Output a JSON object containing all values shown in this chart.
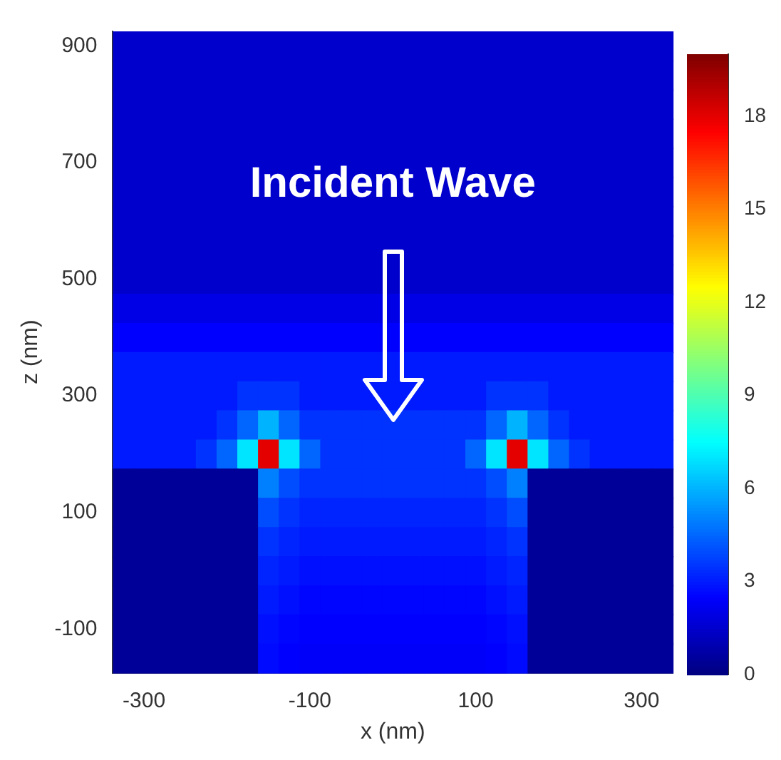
{
  "chart_data": {
    "type": "heatmap",
    "xlabel": "x (nm)",
    "ylabel": "z (nm)",
    "annotations": [
      "Incident Wave"
    ],
    "clim": [
      0,
      20
    ],
    "cticks": [
      0,
      3,
      6,
      9,
      12,
      15,
      18
    ],
    "categories": [
      null,
      "-300",
      null,
      null,
      null,
      null,
      null,
      null,
      null,
      "-100",
      null,
      null,
      null,
      null,
      null,
      null,
      null,
      "100",
      null,
      null,
      null,
      null,
      null,
      null,
      null,
      "300",
      null
    ],
    "y_categories": [
      "900",
      null,
      null,
      null,
      "700",
      null,
      null,
      null,
      "500",
      null,
      null,
      null,
      "300",
      null,
      null,
      null,
      "100",
      null,
      null,
      null,
      "-100",
      null
    ],
    "cells": [
      [
        1.5,
        1.5,
        1.5,
        1.5,
        1.5,
        1.5,
        1.5,
        1.5,
        1.5,
        1.5,
        1.5,
        1.5,
        1.5,
        1.5,
        1.5,
        1.5,
        1.5,
        1.5,
        1.5,
        1.5,
        1.5,
        1.5,
        1.5,
        1.5,
        1.5,
        1.5,
        1.5
      ],
      [
        1.5,
        1.5,
        1.5,
        1.5,
        1.5,
        1.5,
        1.5,
        1.5,
        1.5,
        1.5,
        1.5,
        1.5,
        1.5,
        1.5,
        1.5,
        1.5,
        1.5,
        1.5,
        1.5,
        1.5,
        1.5,
        1.5,
        1.5,
        1.5,
        1.5,
        1.5,
        1.5
      ],
      [
        1.5,
        1.5,
        1.5,
        1.5,
        1.5,
        1.5,
        1.5,
        1.5,
        1.5,
        1.5,
        1.5,
        1.5,
        1.5,
        1.5,
        1.5,
        1.5,
        1.5,
        1.5,
        1.5,
        1.5,
        1.5,
        1.5,
        1.5,
        1.5,
        1.5,
        1.5,
        1.5
      ],
      [
        1.5,
        1.5,
        1.5,
        1.5,
        1.5,
        1.5,
        1.5,
        1.5,
        1.5,
        1.5,
        1.5,
        1.5,
        1.5,
        1.5,
        1.5,
        1.5,
        1.5,
        1.5,
        1.5,
        1.5,
        1.5,
        1.5,
        1.5,
        1.5,
        1.5,
        1.5,
        1.5
      ],
      [
        1.5,
        1.5,
        1.5,
        1.5,
        1.5,
        1.5,
        1.5,
        1.5,
        1.5,
        1.5,
        1.5,
        1.5,
        1.5,
        1.5,
        1.5,
        1.5,
        1.5,
        1.5,
        1.5,
        1.5,
        1.5,
        1.5,
        1.5,
        1.5,
        1.5,
        1.5,
        1.5
      ],
      [
        1.5,
        1.5,
        1.5,
        1.5,
        1.5,
        1.5,
        1.5,
        1.5,
        1.5,
        1.5,
        1.5,
        1.5,
        1.5,
        1.5,
        1.5,
        1.5,
        1.5,
        1.5,
        1.5,
        1.5,
        1.5,
        1.5,
        1.5,
        1.5,
        1.5,
        1.5,
        1.5
      ],
      [
        1.5,
        1.5,
        1.5,
        1.5,
        1.5,
        1.5,
        1.5,
        1.5,
        1.5,
        1.5,
        1.5,
        1.5,
        1.5,
        1.5,
        1.5,
        1.5,
        1.5,
        1.5,
        1.5,
        1.5,
        1.5,
        1.5,
        1.5,
        1.5,
        1.5,
        1.5,
        1.5
      ],
      [
        1.5,
        1.5,
        1.5,
        1.5,
        1.5,
        1.5,
        1.5,
        1.5,
        1.5,
        1.5,
        1.5,
        1.5,
        1.5,
        1.5,
        1.5,
        1.5,
        1.5,
        1.5,
        1.5,
        1.5,
        1.5,
        1.5,
        1.5,
        1.5,
        1.5,
        1.5,
        1.5
      ],
      [
        1.5,
        1.5,
        1.5,
        1.5,
        1.5,
        1.5,
        1.5,
        1.5,
        1.5,
        1.5,
        1.5,
        1.5,
        1.5,
        1.5,
        1.5,
        1.5,
        1.5,
        1.5,
        1.5,
        1.5,
        1.5,
        1.5,
        1.5,
        1.5,
        1.5,
        1.5,
        1.5
      ],
      [
        2,
        2,
        2,
        2,
        2,
        2,
        2,
        2,
        2,
        2,
        2,
        2,
        2,
        2,
        2,
        2,
        2,
        2,
        2,
        2,
        2,
        2,
        2,
        2,
        2,
        2,
        2
      ],
      [
        2.5,
        2.5,
        2.5,
        2.5,
        2.5,
        2.5,
        2.5,
        2.5,
        2.5,
        2.5,
        2.5,
        2.5,
        2.5,
        2.5,
        2.5,
        2.5,
        2.5,
        2.5,
        2.5,
        2.5,
        2.5,
        2.5,
        2.5,
        2.5,
        2.5,
        2.5,
        2.5
      ],
      [
        3,
        3,
        3,
        3,
        3,
        3,
        3,
        3,
        3,
        3,
        3,
        3,
        3,
        3,
        3,
        3,
        3,
        3,
        3,
        3,
        3,
        3,
        3,
        3,
        3,
        3,
        3
      ],
      [
        3,
        3,
        3,
        3,
        3,
        3,
        3.5,
        3.5,
        3.5,
        3,
        3,
        3,
        3,
        3,
        3,
        3,
        3,
        3,
        3.5,
        3.5,
        3.5,
        3,
        3,
        3,
        3,
        3,
        3
      ],
      [
        3,
        3,
        3,
        3,
        3,
        3.5,
        4.5,
        6,
        4.5,
        3.5,
        3.5,
        3.5,
        3.5,
        3.5,
        3.5,
        3.5,
        3.5,
        3.5,
        4.5,
        6,
        4.5,
        3.5,
        3,
        3,
        3,
        3,
        3
      ],
      [
        3,
        3,
        3,
        3,
        3.5,
        4.5,
        7,
        18,
        7,
        4.5,
        3.5,
        3.5,
        3.5,
        3.5,
        3.5,
        3.5,
        3.5,
        4.5,
        7,
        18,
        7,
        4.5,
        3.5,
        3,
        3,
        3,
        3
      ],
      [
        0.5,
        0.5,
        0.5,
        0.5,
        0.5,
        0.5,
        0.5,
        5,
        4,
        3.5,
        3.5,
        3.5,
        3.5,
        3.5,
        3.5,
        3.5,
        3.5,
        3.5,
        4,
        5,
        0.5,
        0.5,
        0.5,
        0.5,
        0.5,
        0.5,
        0.5
      ],
      [
        0.5,
        0.5,
        0.5,
        0.5,
        0.5,
        0.5,
        0.5,
        4,
        3.5,
        3.2,
        3.2,
        3.2,
        3.2,
        3.2,
        3.2,
        3.2,
        3.2,
        3.2,
        3.5,
        4,
        0.5,
        0.5,
        0.5,
        0.5,
        0.5,
        0.5,
        0.5
      ],
      [
        0.5,
        0.5,
        0.5,
        0.5,
        0.5,
        0.5,
        0.5,
        3.5,
        3.2,
        3,
        3,
        3,
        3,
        3,
        3,
        3,
        3,
        3,
        3.2,
        3.5,
        0.5,
        0.5,
        0.5,
        0.5,
        0.5,
        0.5,
        0.5
      ],
      [
        0.5,
        0.5,
        0.5,
        0.5,
        0.5,
        0.5,
        0.5,
        3.2,
        3,
        2.8,
        2.8,
        2.8,
        2.8,
        2.8,
        2.8,
        2.8,
        2.8,
        2.8,
        3,
        3.2,
        0.5,
        0.5,
        0.5,
        0.5,
        0.5,
        0.5,
        0.5
      ],
      [
        0.5,
        0.5,
        0.5,
        0.5,
        0.5,
        0.5,
        0.5,
        3,
        2.8,
        2.6,
        2.6,
        2.6,
        2.6,
        2.6,
        2.6,
        2.6,
        2.6,
        2.6,
        2.8,
        3,
        0.5,
        0.5,
        0.5,
        0.5,
        0.5,
        0.5,
        0.5
      ],
      [
        0.5,
        0.5,
        0.5,
        0.5,
        0.5,
        0.5,
        0.5,
        2.8,
        2.6,
        2.5,
        2.5,
        2.5,
        2.5,
        2.5,
        2.5,
        2.5,
        2.5,
        2.5,
        2.6,
        2.8,
        0.5,
        0.5,
        0.5,
        0.5,
        0.5,
        0.5,
        0.5
      ],
      [
        0.5,
        0.5,
        0.5,
        0.5,
        0.5,
        0.5,
        0.5,
        2.7,
        2.5,
        2.4,
        2.4,
        2.4,
        2.4,
        2.4,
        2.4,
        2.4,
        2.4,
        2.4,
        2.5,
        2.7,
        0.5,
        0.5,
        0.5,
        0.5,
        0.5,
        0.5,
        0.5
      ]
    ]
  }
}
